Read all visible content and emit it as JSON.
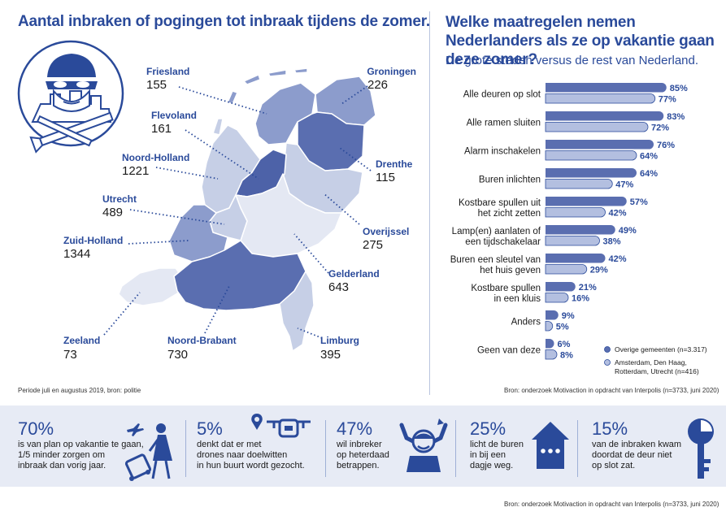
{
  "left": {
    "title": "Aantal inbraken of pogingen tot inbraak tijdens de zomer.",
    "source": "Periode juli en augustus 2019, bron: politie",
    "provinces": [
      {
        "name": "Friesland",
        "value": "155"
      },
      {
        "name": "Groningen",
        "value": "226"
      },
      {
        "name": "Flevoland",
        "value": "161"
      },
      {
        "name": "Drenthe",
        "value": "115"
      },
      {
        "name": "Noord-Holland",
        "value": "1221"
      },
      {
        "name": "Utrecht",
        "value": "489"
      },
      {
        "name": "Overijssel",
        "value": "275"
      },
      {
        "name": "Zuid-Holland",
        "value": "1344"
      },
      {
        "name": "Gelderland",
        "value": "643"
      },
      {
        "name": "Zeeland",
        "value": "73"
      },
      {
        "name": "Noord-Brabant",
        "value": "730"
      },
      {
        "name": "Limburg",
        "value": "395"
      }
    ],
    "colors": {
      "dark": "#4d62a8",
      "mid": "#8c9ccc",
      "light": "#c6cfe6",
      "pale": "#e4e8f3",
      "accent": "#2a4a9a"
    },
    "icon": "burglar-icon"
  },
  "chart_data": {
    "type": "bar",
    "title": "Welke maatregelen nemen Nederlanders als ze op vakantie gaan deze zomer?",
    "subtitle": "De grote steden versus de rest van Nederland.",
    "categories": [
      "Alle deuren op slot",
      "Alle ramen sluiten",
      "Alarm inschakelen",
      "Buren inlichten",
      "Kostbare spullen uit het zicht zetten",
      "Lamp(en) aanlaten of een tijdschakelaar",
      "Buren een sleutel van het huis geven",
      "Kostbare spullen in een kluis",
      "Anders",
      "Geen van deze"
    ],
    "category_lines": [
      [
        "Alle deuren op slot"
      ],
      [
        "Alle ramen sluiten"
      ],
      [
        "Alarm inschakelen"
      ],
      [
        "Buren inlichten"
      ],
      [
        "Kostbare spullen uit",
        "het zicht zetten"
      ],
      [
        "Lamp(en) aanlaten of",
        "een tijdschakelaar"
      ],
      [
        "Buren een sleutel van",
        "het huis geven"
      ],
      [
        "Kostbare spullen",
        "in een kluis"
      ],
      [
        "Anders"
      ],
      [
        "Geen van deze"
      ]
    ],
    "series": [
      {
        "name": "Overige gemeenten (n=3.317)",
        "values": [
          85,
          83,
          76,
          64,
          57,
          49,
          42,
          21,
          9,
          6
        ],
        "color": "#5a6eb0"
      },
      {
        "name": "Amsterdam, Den Haag, Rotterdam, Utrecht (n=416)",
        "values": [
          77,
          72,
          64,
          47,
          42,
          38,
          29,
          16,
          5,
          8
        ],
        "color": "#b3bfe0"
      }
    ],
    "legend_lines": [
      [
        "Overige gemeenten (n=3.317)"
      ],
      [
        "Amsterdam, Den Haag,",
        "Rotterdam, Utrecht (n=416)"
      ]
    ],
    "value_suffix": "%",
    "xlim": [
      0,
      100
    ],
    "legend": "bottom-right",
    "grid": false,
    "source": "Bron: onderzoek Motivaction in opdracht van Interpolis (n=3733, juni 2020)"
  },
  "stats": [
    {
      "pct": "70%",
      "lines": [
        "is van plan op vakantie te gaan,",
        "1/5 minder zorgen om",
        "inbraak dan vorig jaar."
      ],
      "icon": "traveler-icon"
    },
    {
      "pct": "5%",
      "lines": [
        "denkt dat er met",
        "drones naar doelwitten",
        "in hun buurt wordt gezocht."
      ],
      "icon": "drone-icon"
    },
    {
      "pct": "47%",
      "lines": [
        "wil inbreker",
        "op heterdaad",
        "betrappen."
      ],
      "icon": "catching-burglar-icon"
    },
    {
      "pct": "25%",
      "lines": [
        "licht de buren",
        "in bij een",
        "dagje weg."
      ],
      "icon": "house-chat-icon"
    },
    {
      "pct": "15%",
      "lines": [
        "van de inbraken kwam",
        "doordat de deur niet",
        "op slot zat."
      ],
      "icon": "key-icon"
    }
  ],
  "footer_source": "Bron: onderzoek Motivaction in opdracht van Interpolis (n=3733, juni 2020)"
}
